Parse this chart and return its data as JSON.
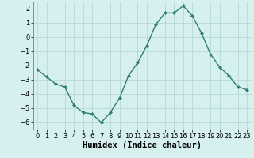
{
  "x": [
    0,
    1,
    2,
    3,
    4,
    5,
    6,
    7,
    8,
    9,
    10,
    11,
    12,
    13,
    14,
    15,
    16,
    17,
    18,
    19,
    20,
    21,
    22,
    23
  ],
  "y": [
    -2.3,
    -2.8,
    -3.3,
    -3.5,
    -4.8,
    -5.3,
    -5.4,
    -6.0,
    -5.3,
    -4.3,
    -2.7,
    -1.8,
    -0.6,
    0.9,
    1.7,
    1.7,
    2.2,
    1.5,
    0.3,
    -1.2,
    -2.1,
    -2.7,
    -3.5,
    -3.7
  ],
  "line_color": "#2e7d6e",
  "marker": "D",
  "marker_size": 2.0,
  "bg_color": "#d6f0ef",
  "grid_color": "#b8d8d8",
  "xlabel": "Humidex (Indice chaleur)",
  "ylim": [
    -6.5,
    2.5
  ],
  "xlim": [
    -0.5,
    23.5
  ],
  "yticks": [
    -6,
    -5,
    -4,
    -3,
    -2,
    -1,
    0,
    1,
    2
  ],
  "xticks": [
    0,
    1,
    2,
    3,
    4,
    5,
    6,
    7,
    8,
    9,
    10,
    11,
    12,
    13,
    14,
    15,
    16,
    17,
    18,
    19,
    20,
    21,
    22,
    23
  ],
  "tick_fontsize": 6.0,
  "xlabel_fontsize": 7.5,
  "line_width": 1.0
}
